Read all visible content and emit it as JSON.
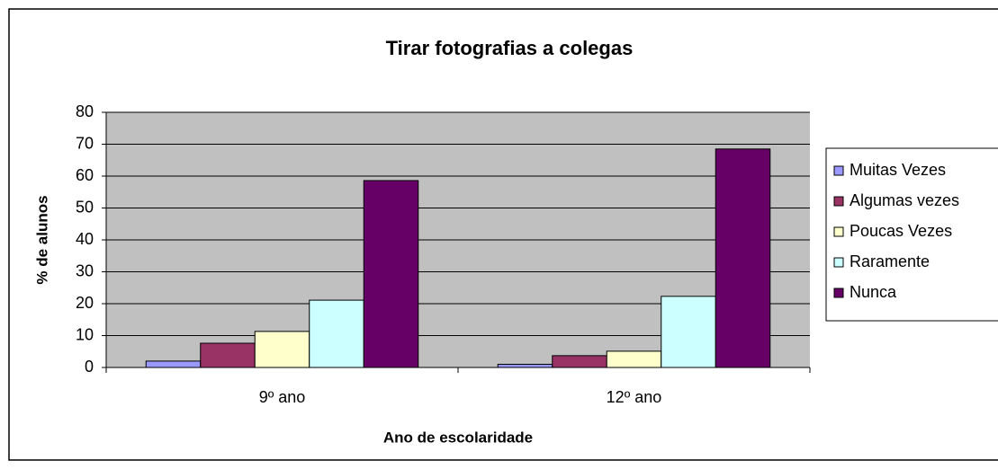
{
  "chart_data": {
    "type": "bar",
    "title": "Tirar fotografias a colegas",
    "x_label": "Ano de escolaridade",
    "y_label": "% de alunos",
    "categories": [
      "9º ano",
      "12º ano"
    ],
    "series": [
      {
        "name": "Muitas Vezes",
        "color": "#9999ff",
        "values": [
          2,
          1
        ]
      },
      {
        "name": "Algumas vezes",
        "color": "#993366",
        "values": [
          7.6,
          3.7
        ]
      },
      {
        "name": "Poucas Vezes",
        "color": "#ffffcc",
        "values": [
          11.3,
          5.1
        ]
      },
      {
        "name": "Raramente",
        "color": "#ccffff",
        "values": [
          21.1,
          22.3
        ]
      },
      {
        "name": "Nunca",
        "color": "#660066",
        "values": [
          58.6,
          68.5
        ]
      }
    ],
    "ylim": [
      0,
      80
    ],
    "yticks": [
      0,
      10,
      20,
      30,
      40,
      50,
      60,
      70,
      80
    ],
    "grid": true,
    "legend": "right"
  }
}
